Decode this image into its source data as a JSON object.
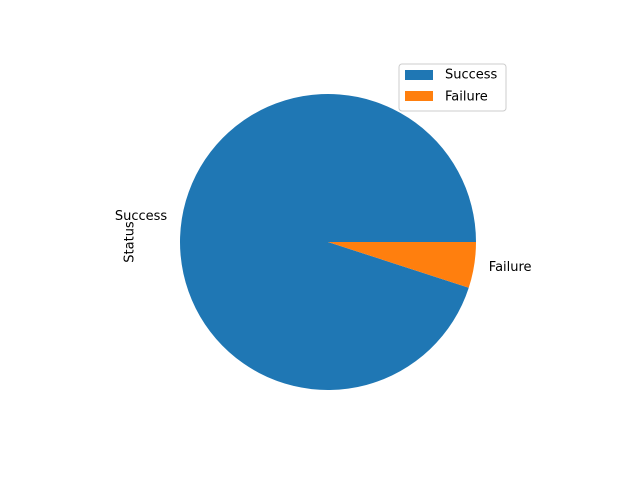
{
  "chart_data": {
    "type": "pie",
    "ylabel": "Status",
    "categories": [
      "Success",
      "Failure"
    ],
    "values": [
      95,
      5
    ],
    "colors": [
      "#1f77b4",
      "#ff7f0e"
    ],
    "start_angle_deg": 0,
    "direction": "counterclockwise",
    "legend": {
      "position": "top-right",
      "entries": [
        "Success",
        "Failure"
      ]
    }
  }
}
